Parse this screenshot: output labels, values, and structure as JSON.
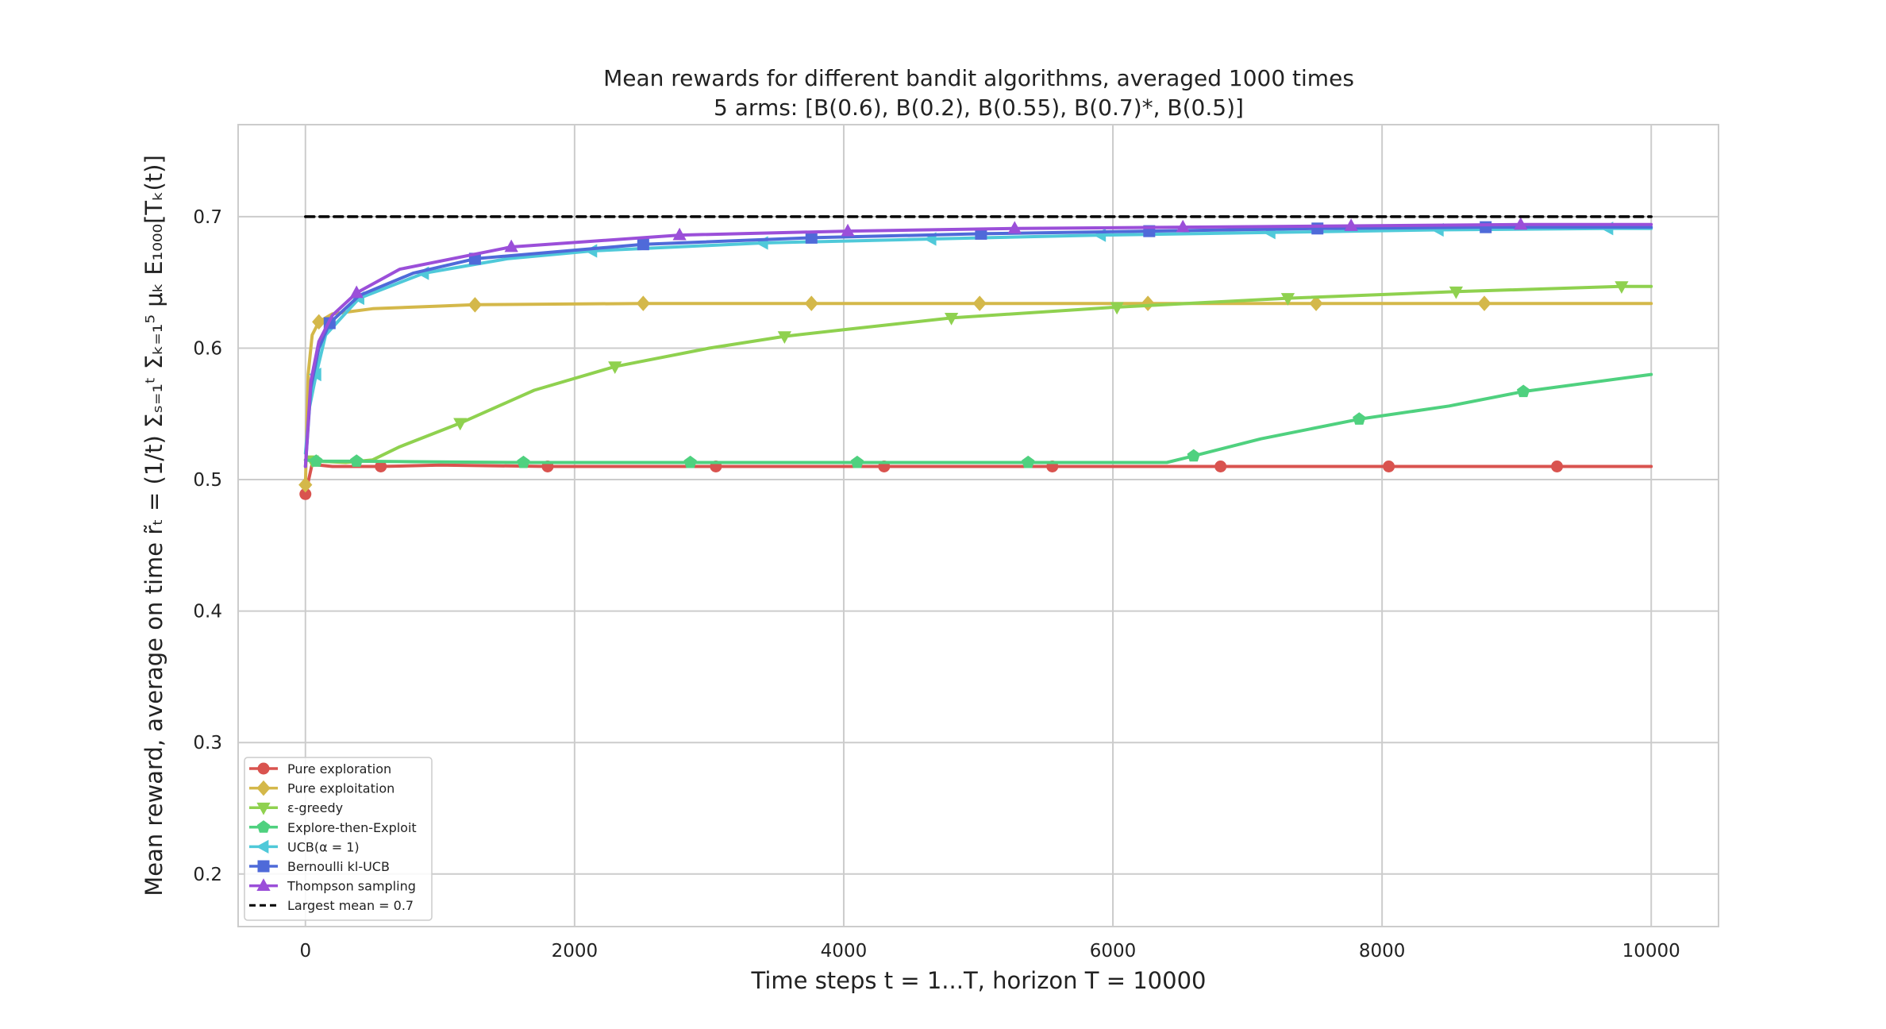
{
  "chart_data": {
    "type": "line",
    "title": "Mean rewards for different bandit algorithms, averaged 1000 times",
    "subtitle": "5 arms: [B(0.6), B(0.2), B(0.55), B(0.7)*, B(0.5)]",
    "xlabel": "Time steps t = 1...T, horizon T = 10000",
    "ylabel": "Mean reward, average on time r̃ₜ = (1/t) Σₛ₌₁ᵗ Σₖ₌₁⁵ μₖ E₁₀₀₀[Tₖ(t)]",
    "xlim": [
      -500,
      10500
    ],
    "ylim": [
      0.16,
      0.77
    ],
    "x_ticks": [
      0,
      2000,
      4000,
      6000,
      8000,
      10000
    ],
    "y_ticks": [
      0.2,
      0.3,
      0.4,
      0.5,
      0.6,
      0.7
    ],
    "grid": true,
    "legend_position": "bottom-left",
    "series": [
      {
        "name": "Pure exploration",
        "color": "#d9534f",
        "marker": "circle",
        "points": [
          [
            0,
            0.489
          ],
          [
            50,
            0.512
          ],
          [
            100,
            0.511
          ],
          [
            200,
            0.51
          ],
          [
            560,
            0.51
          ],
          [
            1000,
            0.511
          ],
          [
            1800,
            0.51
          ],
          [
            3050,
            0.51
          ],
          [
            4300,
            0.51
          ],
          [
            5550,
            0.51
          ],
          [
            6800,
            0.51
          ],
          [
            8050,
            0.51
          ],
          [
            9300,
            0.51
          ],
          [
            10000,
            0.51
          ]
        ],
        "markers_x": [
          0,
          560,
          1800,
          3050,
          4300,
          5550,
          6800,
          8050,
          9300
        ]
      },
      {
        "name": "Pure exploitation",
        "color": "#d4b84a",
        "marker": "diamond",
        "points": [
          [
            0,
            0.496
          ],
          [
            20,
            0.58
          ],
          [
            50,
            0.61
          ],
          [
            100,
            0.62
          ],
          [
            200,
            0.626
          ],
          [
            500,
            0.63
          ],
          [
            1000,
            0.632
          ],
          [
            1260,
            0.633
          ],
          [
            2510,
            0.634
          ],
          [
            3760,
            0.634
          ],
          [
            5010,
            0.634
          ],
          [
            6260,
            0.634
          ],
          [
            7510,
            0.634
          ],
          [
            8760,
            0.634
          ],
          [
            10000,
            0.634
          ]
        ],
        "markers_x": [
          0,
          100,
          1260,
          2510,
          3760,
          5010,
          6260,
          7510,
          8760
        ]
      },
      {
        "name": "ε-greedy",
        "color": "#8fd14f",
        "marker": "triangle-down",
        "points": [
          [
            0,
            0.515
          ],
          [
            100,
            0.514
          ],
          [
            300,
            0.513
          ],
          [
            500,
            0.515
          ],
          [
            700,
            0.525
          ],
          [
            1150,
            0.543
          ],
          [
            1700,
            0.568
          ],
          [
            2300,
            0.586
          ],
          [
            3000,
            0.6
          ],
          [
            3560,
            0.609
          ],
          [
            4000,
            0.614
          ],
          [
            4800,
            0.623
          ],
          [
            6000,
            0.631
          ],
          [
            7300,
            0.638
          ],
          [
            8550,
            0.643
          ],
          [
            9780,
            0.647
          ],
          [
            10000,
            0.647
          ]
        ],
        "markers_x": [
          50,
          1150,
          2300,
          3560,
          4800,
          6030,
          7300,
          8550,
          9780
        ]
      },
      {
        "name": "Explore-then-Exploit",
        "color": "#4fd17f",
        "marker": "pentagon",
        "points": [
          [
            0,
            0.515
          ],
          [
            80,
            0.514
          ],
          [
            380,
            0.514
          ],
          [
            1620,
            0.513
          ],
          [
            2860,
            0.513
          ],
          [
            4100,
            0.513
          ],
          [
            5370,
            0.513
          ],
          [
            6400,
            0.513
          ],
          [
            6600,
            0.518
          ],
          [
            7100,
            0.531
          ],
          [
            7830,
            0.546
          ],
          [
            8500,
            0.556
          ],
          [
            9050,
            0.567
          ],
          [
            10000,
            0.58
          ]
        ],
        "markers_x": [
          80,
          380,
          1620,
          2860,
          4100,
          5370,
          6600,
          7830,
          9050
        ]
      },
      {
        "name": "UCB(α = 1)",
        "color": "#4fc9d9",
        "marker": "triangle-left",
        "points": [
          [
            0,
            0.52
          ],
          [
            30,
            0.555
          ],
          [
            80,
            0.58
          ],
          [
            150,
            0.61
          ],
          [
            400,
            0.638
          ],
          [
            880,
            0.657
          ],
          [
            1500,
            0.668
          ],
          [
            2130,
            0.674
          ],
          [
            3400,
            0.68
          ],
          [
            4650,
            0.683
          ],
          [
            5910,
            0.686
          ],
          [
            7170,
            0.688
          ],
          [
            8420,
            0.69
          ],
          [
            9680,
            0.691
          ],
          [
            10000,
            0.691
          ]
        ],
        "markers_x": [
          80,
          400,
          880,
          2130,
          3400,
          4650,
          5910,
          7170,
          8420,
          9680
        ]
      },
      {
        "name": "Bernoulli kl-UCB",
        "color": "#4f6ad9",
        "marker": "square",
        "points": [
          [
            0,
            0.51
          ],
          [
            40,
            0.57
          ],
          [
            100,
            0.6
          ],
          [
            180,
            0.619
          ],
          [
            400,
            0.64
          ],
          [
            800,
            0.657
          ],
          [
            1260,
            0.668
          ],
          [
            2510,
            0.679
          ],
          [
            3760,
            0.684
          ],
          [
            5020,
            0.687
          ],
          [
            6270,
            0.689
          ],
          [
            7520,
            0.691
          ],
          [
            8770,
            0.692
          ],
          [
            10000,
            0.692
          ]
        ],
        "markers_x": [
          180,
          1260,
          2510,
          3760,
          5020,
          6270,
          7520,
          8770
        ]
      },
      {
        "name": "Thompson sampling",
        "color": "#9b4fd9",
        "marker": "triangle-up",
        "points": [
          [
            0,
            0.51
          ],
          [
            40,
            0.575
          ],
          [
            100,
            0.605
          ],
          [
            200,
            0.625
          ],
          [
            380,
            0.642
          ],
          [
            700,
            0.66
          ],
          [
            1530,
            0.677
          ],
          [
            2780,
            0.686
          ],
          [
            4030,
            0.689
          ],
          [
            5270,
            0.691
          ],
          [
            6520,
            0.692
          ],
          [
            7770,
            0.693
          ],
          [
            9030,
            0.694
          ],
          [
            10000,
            0.694
          ]
        ],
        "markers_x": [
          380,
          1530,
          2780,
          4030,
          5270,
          6520,
          7770,
          9030
        ]
      },
      {
        "name": "Largest mean = 0.7",
        "color": "#000000",
        "dashed": true,
        "marker": "none",
        "points": [
          [
            0,
            0.7
          ],
          [
            10000,
            0.7
          ]
        ],
        "markers_x": []
      }
    ]
  }
}
